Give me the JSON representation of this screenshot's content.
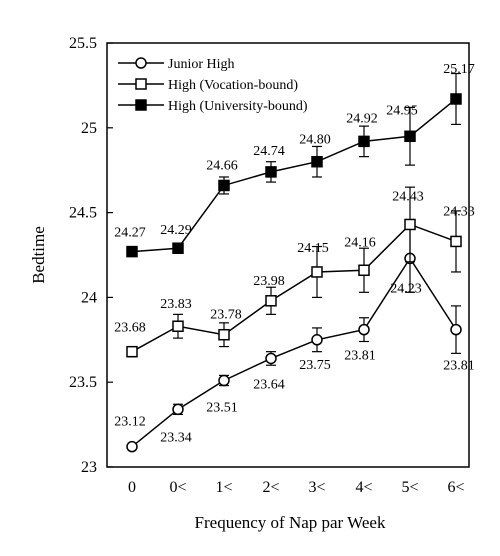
{
  "chart_data": {
    "type": "line",
    "title": "",
    "xlabel": "Frequency of Nap par Week",
    "ylabel": "Bedtime",
    "categories": [
      "0",
      "0<",
      "1<",
      "2<",
      "3<",
      "4<",
      "5<",
      "6<"
    ],
    "ylim": [
      23,
      25.5
    ],
    "yticks": [
      "23",
      "23.5",
      "24",
      "24.5",
      "25",
      "25.5"
    ],
    "grid": false,
    "legend_position": "top-left",
    "series": [
      {
        "name": "Junior High",
        "marker": "open-circle",
        "values": [
          23.12,
          23.34,
          23.51,
          23.64,
          23.75,
          23.81,
          24.23,
          23.81
        ],
        "labels": [
          "23.12",
          "23.34",
          "23.51",
          "23.64",
          "23.75",
          "23.81",
          "24.23",
          "23.81"
        ],
        "error": [
          0.0,
          0.03,
          0.03,
          0.04,
          0.07,
          0.07,
          0.2,
          0.14
        ]
      },
      {
        "name": "High (Vocation-bound)",
        "marker": "open-square",
        "values": [
          23.68,
          23.83,
          23.78,
          23.98,
          24.15,
          24.16,
          24.43,
          24.33
        ],
        "labels": [
          "23.68",
          "23.83",
          "23.78",
          "23.98",
          "24.15",
          "24.16",
          "24.43",
          "24.33"
        ],
        "error": [
          0.03,
          0.07,
          0.07,
          0.08,
          0.15,
          0.13,
          0.22,
          0.18
        ]
      },
      {
        "name": "High (University-bound)",
        "marker": "filled-square",
        "values": [
          24.27,
          24.29,
          24.66,
          24.74,
          24.8,
          24.92,
          24.95,
          25.17
        ],
        "labels": [
          "24.27",
          "24.29",
          "24.66",
          "24.74",
          "24.80",
          "24.92",
          "24.95",
          "25.17"
        ],
        "error": [
          0.0,
          0.03,
          0.05,
          0.06,
          0.09,
          0.09,
          0.17,
          0.15
        ]
      }
    ]
  }
}
